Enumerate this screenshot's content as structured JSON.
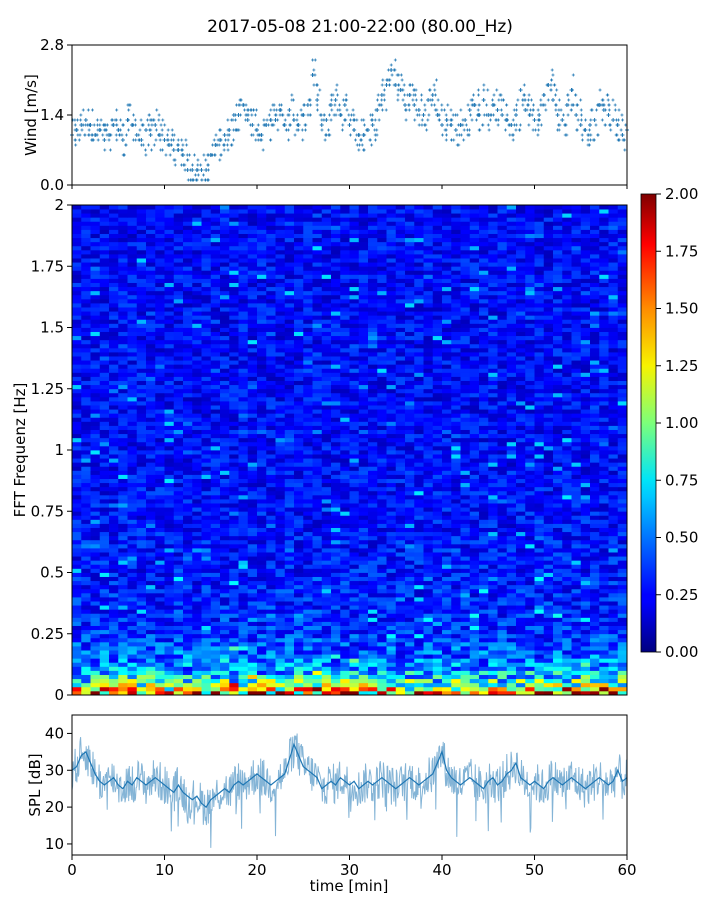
{
  "title": "2017-05-08 21:00-22:00 (80.00_Hz)",
  "colors": {
    "series": "#1f77b4",
    "colormap": "jet"
  },
  "chart_data": [
    {
      "type": "scatter",
      "panel": "wind",
      "ylabel": "Wind [m/s]",
      "xlim": [
        0,
        60
      ],
      "ylim": [
        0,
        2.8
      ],
      "yticks": [
        "0.0",
        "1.4",
        "2.8"
      ],
      "marker": "+",
      "x": [
        0,
        0.5,
        1,
        1.5,
        2,
        2.5,
        3,
        3.5,
        4,
        4.5,
        5,
        5.5,
        6,
        6.5,
        7,
        7.5,
        8,
        8.5,
        9,
        9.5,
        10,
        10.5,
        11,
        11.5,
        12,
        12.5,
        13,
        13.5,
        14,
        14.5,
        15,
        15.5,
        16,
        16.5,
        17,
        17.5,
        18,
        18.5,
        19,
        19.5,
        20,
        20.5,
        21,
        21.5,
        22,
        22.5,
        23,
        23.5,
        24,
        24.5,
        25,
        25.5,
        26,
        26.5,
        27,
        27.5,
        28,
        28.5,
        29,
        29.5,
        30,
        30.5,
        31,
        31.5,
        32,
        32.5,
        33,
        33.5,
        34,
        34.5,
        35,
        35.5,
        36,
        36.5,
        37,
        37.5,
        38,
        38.5,
        39,
        39.5,
        40,
        40.5,
        41,
        41.5,
        42,
        42.5,
        43,
        43.5,
        44,
        44.5,
        45,
        45.5,
        46,
        46.5,
        47,
        47.5,
        48,
        48.5,
        49,
        49.5,
        50,
        50.5,
        51,
        51.5,
        52,
        52.5,
        53,
        53.5,
        54,
        54.5,
        55,
        55.5,
        56,
        56.5,
        57,
        57.5,
        58,
        58.5,
        59,
        59.5,
        60
      ],
      "y": [
        1.0,
        1.1,
        1.2,
        1.3,
        1.2,
        1.0,
        1.1,
        0.9,
        1.0,
        1.2,
        1.1,
        0.9,
        1.3,
        1.2,
        1.0,
        0.9,
        1.1,
        1.0,
        1.2,
        1.0,
        0.9,
        0.8,
        0.7,
        0.7,
        0.6,
        0.3,
        0.3,
        0.3,
        0.3,
        0.3,
        0.6,
        0.8,
        0.9,
        1.0,
        1.1,
        1.4,
        1.4,
        1.6,
        1.3,
        1.2,
        1.1,
        1.0,
        1.2,
        1.3,
        1.3,
        1.5,
        1.2,
        1.5,
        1.3,
        1.2,
        1.4,
        1.6,
        2.2,
        1.7,
        1.2,
        1.3,
        1.6,
        1.7,
        1.4,
        1.6,
        1.2,
        1.1,
        1.0,
        1.0,
        1.1,
        1.2,
        1.5,
        1.8,
        2.0,
        2.3,
        2.0,
        1.9,
        1.6,
        1.8,
        1.6,
        1.5,
        1.4,
        1.7,
        1.8,
        1.4,
        1.2,
        1.3,
        1.2,
        1.1,
        1.2,
        1.3,
        1.5,
        1.6,
        1.4,
        1.7,
        1.4,
        1.6,
        1.5,
        1.4,
        1.3,
        1.2,
        1.4,
        1.9,
        1.5,
        1.4,
        1.3,
        1.4,
        1.8,
        2.0,
        1.7,
        1.4,
        1.3,
        1.6,
        1.9,
        1.4,
        1.2,
        1.1,
        1.2,
        1.3,
        1.6,
        1.5,
        1.4,
        1.3,
        1.2,
        1.0,
        1.1
      ]
    },
    {
      "type": "heatmap",
      "panel": "spectrogram",
      "ylabel": "FFT Frequenz [Hz]",
      "xlim": [
        0,
        60
      ],
      "ylim": [
        0,
        2
      ],
      "yticks": [
        "0",
        "0.25",
        "0.5",
        "0.75",
        "1",
        "1.25",
        "1.5",
        "1.75",
        "2"
      ],
      "colorbar": {
        "range": [
          0,
          2
        ],
        "ticks": [
          "0.00",
          "0.25",
          "0.50",
          "0.75",
          "1.00",
          "1.25",
          "1.50",
          "1.75",
          "2.00"
        ]
      },
      "freq_mean_level": [
        {
          "f": 0.0,
          "v": 1.6
        },
        {
          "f": 0.05,
          "v": 0.85
        },
        {
          "f": 0.1,
          "v": 0.55
        },
        {
          "f": 0.15,
          "v": 0.45
        },
        {
          "f": 0.25,
          "v": 0.33
        },
        {
          "f": 0.5,
          "v": 0.28
        },
        {
          "f": 1.0,
          "v": 0.25
        },
        {
          "f": 2.0,
          "v": 0.25
        }
      ]
    },
    {
      "type": "line",
      "panel": "spl",
      "ylabel": "SPL [dB]",
      "xlabel": "time [min]",
      "xlim": [
        0,
        60
      ],
      "ylim": [
        7,
        45
      ],
      "xticks": [
        "0",
        "10",
        "20",
        "30",
        "40",
        "50",
        "60"
      ],
      "yticks": [
        "10",
        "20",
        "30",
        "40"
      ],
      "x": [
        0,
        0.5,
        1,
        1.5,
        2,
        2.5,
        3,
        3.5,
        4,
        4.5,
        5,
        5.5,
        6,
        6.5,
        7,
        7.5,
        8,
        8.5,
        9,
        9.5,
        10,
        10.5,
        11,
        11.5,
        12,
        12.5,
        13,
        13.5,
        14,
        14.5,
        15,
        15.5,
        16,
        16.5,
        17,
        17.5,
        18,
        18.5,
        19,
        19.5,
        20,
        20.5,
        21,
        21.5,
        22,
        22.5,
        23,
        23.5,
        24,
        24.5,
        25,
        25.5,
        26,
        26.5,
        27,
        27.5,
        28,
        28.5,
        29,
        29.5,
        30,
        30.5,
        31,
        31.5,
        32,
        32.5,
        33,
        33.5,
        34,
        34.5,
        35,
        35.5,
        36,
        36.5,
        37,
        37.5,
        38,
        38.5,
        39,
        39.5,
        40,
        40.5,
        41,
        41.5,
        42,
        42.5,
        43,
        43.5,
        44,
        44.5,
        45,
        45.5,
        46,
        46.5,
        47,
        47.5,
        48,
        48.5,
        49,
        49.5,
        50,
        50.5,
        51,
        51.5,
        52,
        52.5,
        53,
        53.5,
        54,
        54.5,
        55,
        55.5,
        56,
        56.5,
        57,
        57.5,
        58,
        58.5,
        59,
        59.5,
        60
      ],
      "y": [
        30,
        31,
        34,
        35,
        32,
        29,
        27,
        26,
        27,
        28,
        26,
        25,
        27,
        26,
        28,
        27,
        26,
        27,
        28,
        27,
        26,
        25,
        24,
        26,
        24,
        23,
        22,
        23,
        21,
        20,
        22,
        23,
        24,
        25,
        24,
        26,
        27,
        26,
        27,
        28,
        29,
        28,
        27,
        26,
        27,
        28,
        29,
        33,
        37,
        34,
        31,
        30,
        29,
        28,
        25,
        26,
        27,
        26,
        28,
        27,
        26,
        27,
        25,
        26,
        27,
        26,
        27,
        28,
        27,
        26,
        25,
        26,
        27,
        28,
        27,
        26,
        27,
        28,
        29,
        32,
        35,
        30,
        28,
        27,
        26,
        27,
        28,
        27,
        26,
        25,
        27,
        28,
        26,
        27,
        29,
        30,
        32,
        28,
        27,
        26,
        27,
        26,
        25,
        27,
        28,
        27,
        26,
        27,
        28,
        27,
        26,
        25,
        26,
        27,
        28,
        27,
        26,
        27,
        30,
        27,
        28
      ]
    }
  ]
}
